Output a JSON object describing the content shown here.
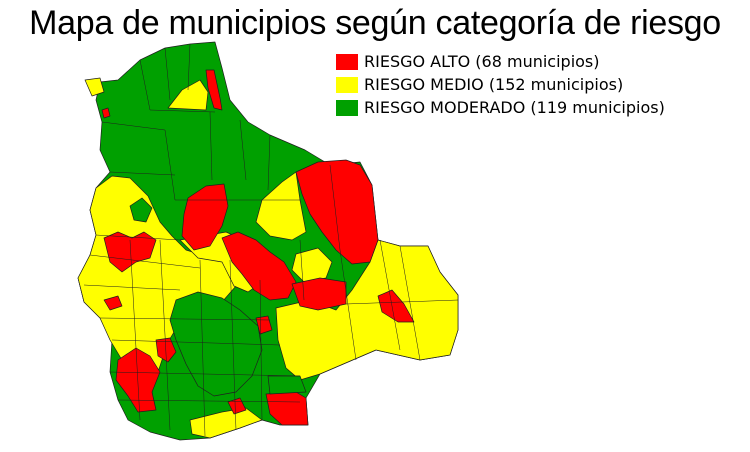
{
  "title": "Mapa de municipios según categoría de riesgo",
  "legend": [
    {
      "label": "RIESGO ALTO (68 municipios)",
      "color": "#ff0000",
      "icon": "red-swatch"
    },
    {
      "label": "RIESGO MEDIO (152 municipios)",
      "color": "#ffff00",
      "icon": "yellow-swatch"
    },
    {
      "label": "RIESGO MODERADO (119 municipios)",
      "color": "#00a000",
      "icon": "green-swatch"
    }
  ],
  "map": {
    "region": "Bolivia",
    "colors": {
      "alto": "#ff0000",
      "medio": "#ffff00",
      "moderado": "#00a000",
      "border": "#1f1f1f"
    }
  }
}
